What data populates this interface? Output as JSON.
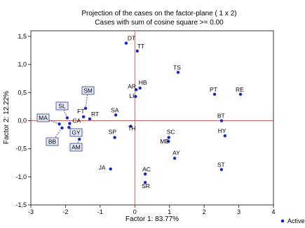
{
  "chart_data": {
    "type": "scatter",
    "title": "Projection of the cases on the factor-plane (  1 x   2)",
    "subtitle": "Cases with sum of cosine square >= 0.00",
    "xlabel": "Factor 1: 83.77%",
    "ylabel": "Factor 2: 12.22%",
    "xlim": [
      -3,
      4
    ],
    "ylim": [
      -1.5,
      1.6
    ],
    "xticks": [
      "-3",
      "-2",
      "-1",
      "0",
      "1",
      "2",
      "3",
      "4"
    ],
    "yticks": [
      "1,5",
      "1,0",
      "0,5",
      "0,0",
      "-0,5",
      "-1,0",
      "-1,5"
    ],
    "legend": {
      "label": "Active",
      "position": "bottom-right"
    },
    "grid": false,
    "points": [
      {
        "label": "DT",
        "x": -0.25,
        "y": 1.38
      },
      {
        "label": "TT",
        "x": 0.07,
        "y": 1.24
      },
      {
        "label": "TS",
        "x": 1.25,
        "y": 0.86
      },
      {
        "label": "PT",
        "x": 2.3,
        "y": 0.47
      },
      {
        "label": "RE",
        "x": 3.05,
        "y": 0.47
      },
      {
        "label": "HB",
        "x": 0.15,
        "y": 0.58
      },
      {
        "label": "AR",
        "x": 0.04,
        "y": 0.55
      },
      {
        "label": "LI",
        "x": 0.02,
        "y": 0.43
      },
      {
        "label": "SM",
        "x": -1.42,
        "y": 0.22
      },
      {
        "label": "SL",
        "x": -1.95,
        "y": 0.05
      },
      {
        "label": "SA",
        "x": -0.55,
        "y": 0.1
      },
      {
        "label": "FT",
        "x": -1.48,
        "y": 0.07
      },
      {
        "label": "RT",
        "x": -1.3,
        "y": 0.03
      },
      {
        "label": "CA",
        "x": -1.88,
        "y": -0.05
      },
      {
        "label": "MA",
        "x": -2.18,
        "y": -0.06
      },
      {
        "label": "GY",
        "x": -1.9,
        "y": -0.12
      },
      {
        "label": "BB",
        "x": -2.1,
        "y": -0.13
      },
      {
        "label": "AM",
        "x": -1.6,
        "y": -0.33
      },
      {
        "label": "BT",
        "x": 2.5,
        "y": 0.0
      },
      {
        "label": "TH",
        "x": -0.12,
        "y": -0.1
      },
      {
        "label": "SP",
        "x": -0.58,
        "y": -0.3
      },
      {
        "label": "HY",
        "x": 2.6,
        "y": -0.27
      },
      {
        "label": "SC",
        "x": 0.98,
        "y": -0.3
      },
      {
        "label": "MB",
        "x": 0.97,
        "y": -0.37
      },
      {
        "label": "AY",
        "x": 1.15,
        "y": -0.67
      },
      {
        "label": "JA",
        "x": -0.7,
        "y": -0.86
      },
      {
        "label": "ST",
        "x": 2.5,
        "y": -0.87
      },
      {
        "label": "AC",
        "x": 0.3,
        "y": -0.95
      },
      {
        "label": "SR",
        "x": 0.3,
        "y": -1.1
      }
    ],
    "boxed_labels": [
      "SM",
      "SL",
      "MA",
      "GY",
      "BB",
      "AM"
    ],
    "colors": {
      "point": "#1428c8",
      "reference_line": "#c86464",
      "box_fill": "#e8ecf8"
    }
  }
}
